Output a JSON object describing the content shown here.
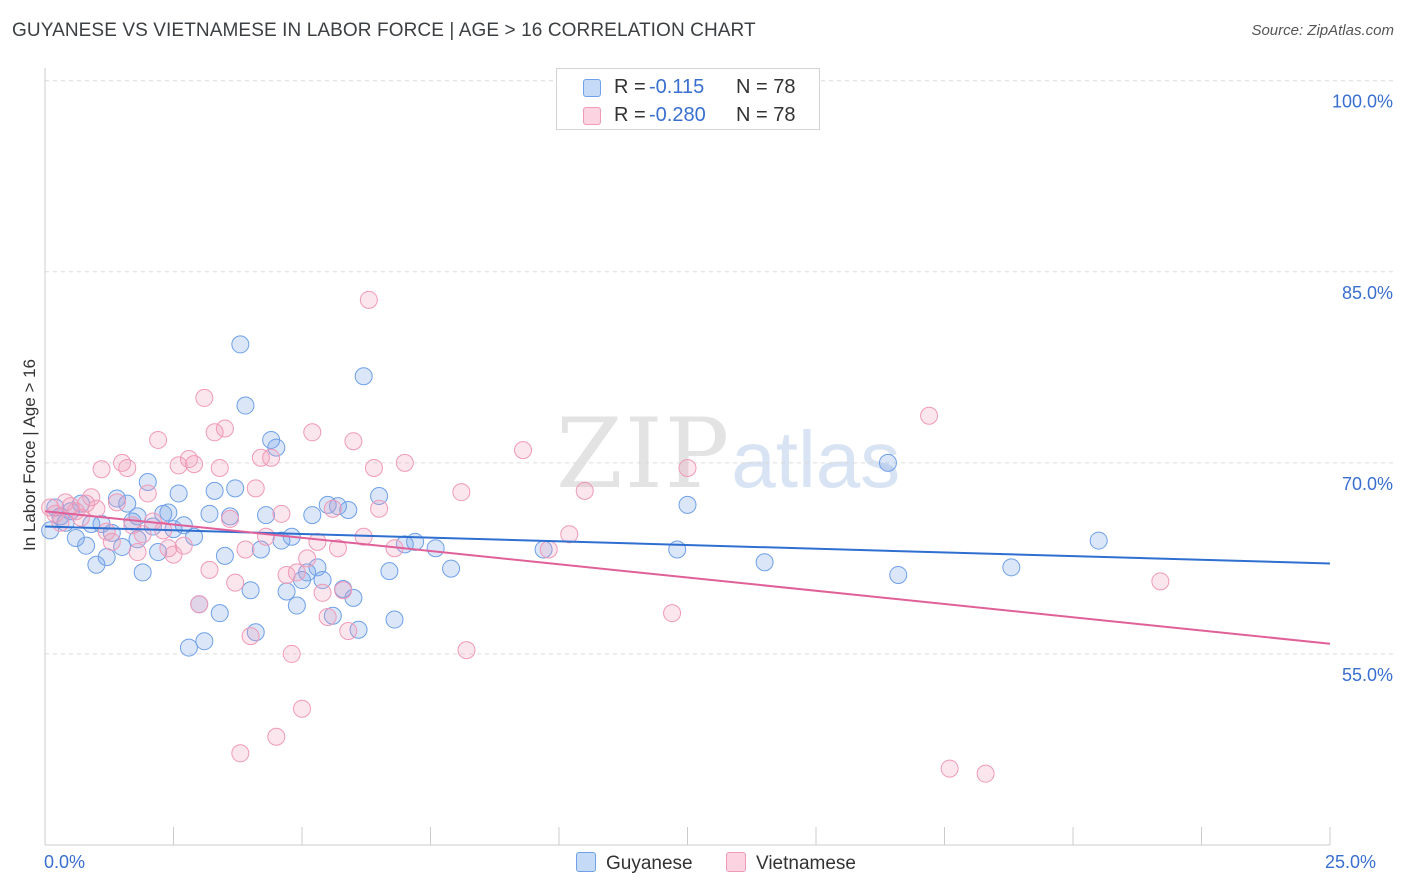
{
  "title": "GUYANESE VS VIETNAMESE IN LABOR FORCE | AGE > 16 CORRELATION CHART",
  "source": "Source: ZipAtlas.com",
  "watermark": {
    "zip": "ZIP",
    "atlas": "atlas"
  },
  "legend": {
    "guyanese": {
      "r_label": "R =",
      "r_value": "-0.115",
      "n_label": "N = 78",
      "color": "#6fa0e8"
    },
    "vietnamese": {
      "r_label": "R =",
      "r_value": "-0.280",
      "n_label": "N = 78",
      "color": "#f09ab8"
    }
  },
  "bottom_legend": [
    "Guyanese",
    "Vietnamese"
  ],
  "x_labels": {
    "left": "0.0%",
    "right": "25.0%"
  },
  "chart_data": {
    "type": "scatter",
    "title": "GUYANESE VS VIETNAMESE IN LABOR FORCE | AGE > 16 CORRELATION CHART",
    "xlabel": "",
    "ylabel": "In Labor Force | Age > 16",
    "xlim": [
      0,
      25
    ],
    "ylim": [
      40,
      101
    ],
    "y_ticks": [
      55,
      70,
      85,
      100
    ],
    "y_tick_labels": [
      "55.0%",
      "70.0%",
      "85.0%",
      "100.0%"
    ],
    "grid": true,
    "series": [
      {
        "name": "Guyanese",
        "color": "#6fa0e8",
        "trend": [
          [
            0,
            65.0
          ],
          [
            25,
            62.1
          ]
        ],
        "points": [
          [
            0.2,
            66.5
          ],
          [
            0.3,
            65.8
          ],
          [
            0.5,
            66.2
          ],
          [
            0.4,
            65.3
          ],
          [
            0.6,
            64.1
          ],
          [
            0.7,
            66.8
          ],
          [
            0.8,
            63.5
          ],
          [
            0.9,
            65.2
          ],
          [
            1.0,
            62.0
          ],
          [
            1.1,
            65.2
          ],
          [
            1.2,
            62.6
          ],
          [
            1.3,
            64.5
          ],
          [
            1.4,
            67.2
          ],
          [
            1.5,
            63.4
          ],
          [
            1.6,
            66.8
          ],
          [
            1.7,
            65.4
          ],
          [
            1.8,
            65.8
          ],
          [
            1.9,
            61.4
          ],
          [
            2.0,
            68.5
          ],
          [
            2.1,
            65.0
          ],
          [
            2.2,
            63.0
          ],
          [
            2.3,
            66.0
          ],
          [
            2.4,
            66.1
          ],
          [
            2.5,
            64.8
          ],
          [
            2.6,
            67.6
          ],
          [
            2.7,
            65.1
          ],
          [
            2.8,
            55.5
          ],
          [
            2.9,
            64.2
          ],
          [
            3.0,
            58.9
          ],
          [
            3.1,
            56.0
          ],
          [
            3.2,
            66.0
          ],
          [
            3.3,
            67.8
          ],
          [
            3.4,
            58.2
          ],
          [
            3.5,
            62.7
          ],
          [
            3.6,
            65.8
          ],
          [
            3.7,
            68.0
          ],
          [
            3.8,
            79.3
          ],
          [
            3.9,
            74.5
          ],
          [
            4.0,
            60.0
          ],
          [
            4.1,
            56.7
          ],
          [
            4.2,
            63.2
          ],
          [
            4.3,
            65.9
          ],
          [
            4.4,
            71.8
          ],
          [
            4.5,
            71.2
          ],
          [
            4.6,
            63.9
          ],
          [
            4.7,
            59.9
          ],
          [
            4.8,
            64.2
          ],
          [
            4.9,
            58.8
          ],
          [
            5.0,
            60.8
          ],
          [
            5.1,
            61.4
          ],
          [
            5.2,
            65.9
          ],
          [
            5.3,
            61.8
          ],
          [
            5.4,
            60.8
          ],
          [
            5.5,
            66.7
          ],
          [
            5.6,
            58.0
          ],
          [
            5.7,
            66.6
          ],
          [
            5.8,
            60.1
          ],
          [
            5.9,
            66.3
          ],
          [
            6.0,
            59.4
          ],
          [
            6.1,
            56.9
          ],
          [
            6.2,
            76.8
          ],
          [
            6.5,
            67.4
          ],
          [
            6.7,
            61.5
          ],
          [
            6.8,
            57.7
          ],
          [
            7.0,
            63.6
          ],
          [
            7.2,
            63.8
          ],
          [
            7.6,
            63.3
          ],
          [
            7.9,
            61.7
          ],
          [
            9.7,
            63.2
          ],
          [
            12.3,
            63.2
          ],
          [
            12.5,
            66.7
          ],
          [
            14.0,
            62.2
          ],
          [
            16.4,
            70.0
          ],
          [
            16.6,
            61.2
          ],
          [
            18.8,
            61.8
          ],
          [
            20.5,
            63.9
          ],
          [
            0.1,
            64.7
          ],
          [
            1.8,
            64.0
          ]
        ]
      },
      {
        "name": "Vietnamese",
        "color": "#f09ab8",
        "trend": [
          [
            0,
            66.2
          ],
          [
            25,
            55.8
          ]
        ],
        "points": [
          [
            0.1,
            66.5
          ],
          [
            0.2,
            66.0
          ],
          [
            0.3,
            65.3
          ],
          [
            0.4,
            66.9
          ],
          [
            0.5,
            66.6
          ],
          [
            0.6,
            66.2
          ],
          [
            0.7,
            65.7
          ],
          [
            0.8,
            66.8
          ],
          [
            0.9,
            67.3
          ],
          [
            1.0,
            66.4
          ],
          [
            1.1,
            69.5
          ],
          [
            1.2,
            64.6
          ],
          [
            1.3,
            63.8
          ],
          [
            1.4,
            66.9
          ],
          [
            1.5,
            70.0
          ],
          [
            1.6,
            69.6
          ],
          [
            1.7,
            65.1
          ],
          [
            1.8,
            63.0
          ],
          [
            1.9,
            64.4
          ],
          [
            2.0,
            67.6
          ],
          [
            2.1,
            65.4
          ],
          [
            2.2,
            71.8
          ],
          [
            2.3,
            64.7
          ],
          [
            2.4,
            63.3
          ],
          [
            2.5,
            62.8
          ],
          [
            2.6,
            69.8
          ],
          [
            2.7,
            63.5
          ],
          [
            2.8,
            70.3
          ],
          [
            2.9,
            69.9
          ],
          [
            3.0,
            58.9
          ],
          [
            3.1,
            75.1
          ],
          [
            3.2,
            61.6
          ],
          [
            3.3,
            72.4
          ],
          [
            3.4,
            69.6
          ],
          [
            3.5,
            72.7
          ],
          [
            3.6,
            65.6
          ],
          [
            3.7,
            60.6
          ],
          [
            3.8,
            47.2
          ],
          [
            3.9,
            63.2
          ],
          [
            4.0,
            56.4
          ],
          [
            4.1,
            68.0
          ],
          [
            4.2,
            70.4
          ],
          [
            4.3,
            64.2
          ],
          [
            4.4,
            70.4
          ],
          [
            4.5,
            48.5
          ],
          [
            4.6,
            66.0
          ],
          [
            4.7,
            61.2
          ],
          [
            4.8,
            55.0
          ],
          [
            4.9,
            61.4
          ],
          [
            5.0,
            50.7
          ],
          [
            5.1,
            62.5
          ],
          [
            5.2,
            72.4
          ],
          [
            5.3,
            63.8
          ],
          [
            5.4,
            59.8
          ],
          [
            5.5,
            57.9
          ],
          [
            5.6,
            66.4
          ],
          [
            5.7,
            63.3
          ],
          [
            5.8,
            60.0
          ],
          [
            5.9,
            56.8
          ],
          [
            6.0,
            71.7
          ],
          [
            6.2,
            64.2
          ],
          [
            6.3,
            82.8
          ],
          [
            6.4,
            69.6
          ],
          [
            6.5,
            66.4
          ],
          [
            6.8,
            63.3
          ],
          [
            7.0,
            70.0
          ],
          [
            8.1,
            67.7
          ],
          [
            8.2,
            55.3
          ],
          [
            9.3,
            71.0
          ],
          [
            9.8,
            63.2
          ],
          [
            10.2,
            64.4
          ],
          [
            10.5,
            67.8
          ],
          [
            12.2,
            58.2
          ],
          [
            12.5,
            69.6
          ],
          [
            17.2,
            73.7
          ],
          [
            21.7,
            60.7
          ],
          [
            17.6,
            46.0
          ],
          [
            18.3,
            45.6
          ]
        ]
      }
    ]
  }
}
